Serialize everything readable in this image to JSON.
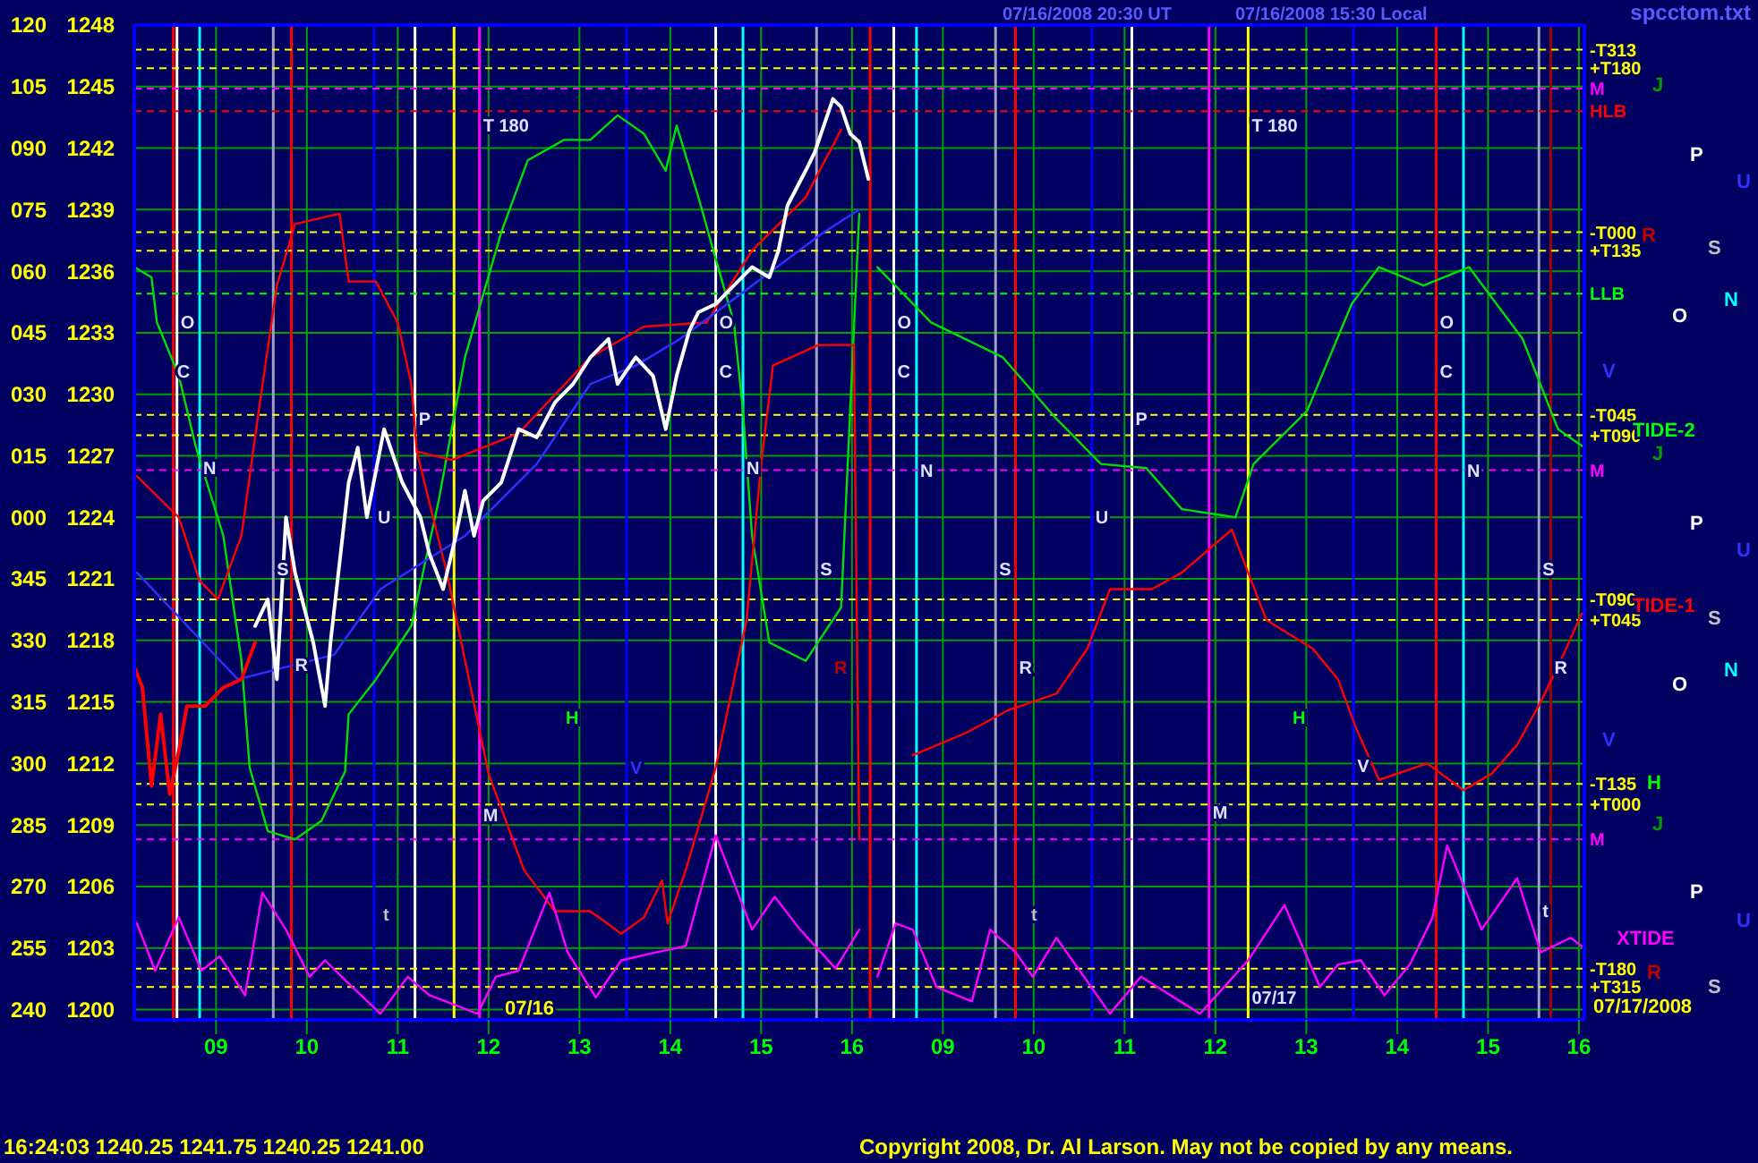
{
  "chart_data": [
    {
      "type": "line",
      "xlim": [
        8.1,
        16.25
      ],
      "ylim": [
        1199.5,
        1248
      ],
      "y2lim": [
        237.5,
        480
      ],
      "xticks": [
        {
          "value": 9,
          "label": "09"
        },
        10,
        11,
        12,
        13,
        14,
        15,
        16
      ],
      "yticks": [
        1200,
        1203,
        1206,
        1209,
        1212,
        1215,
        1218,
        1221,
        1224,
        1227,
        1230,
        1233,
        1236,
        1239,
        1242,
        1245,
        1248
      ],
      "y2ticks": [
        240,
        255,
        270,
        285,
        300,
        315,
        330,
        345
      ],
      "y3lim": [
        -122.5,
        120
      ],
      "y3ticks": [
        {
          "value": 0,
          "label": "000"
        },
        {
          "value": 15,
          "label": "015"
        },
        {
          "value": 30,
          "label": "030"
        },
        {
          "value": 45,
          "label": "045"
        },
        {
          "value": 60,
          "label": "060"
        },
        {
          "value": 75,
          "label": "075"
        },
        {
          "value": 90,
          "label": "090"
        },
        {
          "value": 105,
          "label": "105"
        },
        120
      ],
      "grid": true,
      "line_style": "solid",
      "marker": "none",
      "series": [
        {
          "color": "#00e000",
          "x": [
            8.1,
            8.29,
            8.35,
            8.59,
            8.78,
            9.08,
            9.28,
            9.37,
            9.57,
            9.87,
            10.16,
            10.42,
            10.46,
            10.76,
            11.15,
            11.45,
            11.74,
            12.14,
            12.43,
            12.83,
            13.12,
            13.42,
            13.71,
            13.95,
            14.07,
            14.31,
            14.5,
            14.7,
            14.8,
            14.9,
            15.09,
            15.49,
            15.88,
            16.08
          ],
          "values": [
            1236.2,
            1235.7,
            1233.5,
            1230.9,
            1227.4,
            1223.1,
            1217.0,
            1211.8,
            1208.7,
            1208.3,
            1209.2,
            1211.6,
            1214.4,
            1216.1,
            1218.7,
            1224.8,
            1231.8,
            1237.9,
            1241.4,
            1242.4,
            1242.4,
            1243.6,
            1242.7,
            1240.9,
            1243.1,
            1239.6,
            1236.6,
            1233.5,
            1229.2,
            1223.1,
            1217.9,
            1217.0,
            1219.6,
            1238.8
          ]
        },
        {
          "color": "#ff0000",
          "x": [
            8.13,
            8.59,
            8.82,
            9.02,
            9.28,
            9.47,
            9.67,
            9.87,
            10.36,
            10.46,
            10.76,
            11.0,
            11.15,
            11.21,
            11.6,
            12.33,
            13.12,
            13.71,
            14.4,
            14.9,
            15.49,
            15.88
          ],
          "values": [
            1226.0,
            1224.0,
            1220.9,
            1220.0,
            1223.1,
            1229.2,
            1235.3,
            1238.3,
            1238.8,
            1235.5,
            1235.5,
            1233.5,
            1230.5,
            1227.2,
            1226.8,
            1228.1,
            1231.8,
            1233.3,
            1233.5,
            1237.0,
            1239.6,
            1242.9
          ]
        },
        {
          "color": "#ff0000",
          "x": [
            11.21,
            11.54,
            12.0,
            12.39,
            12.73,
            13.12,
            13.46,
            13.71,
            13.91,
            13.97,
            14.17,
            14.5,
            14.84,
            15.0,
            15.13,
            15.63,
            16.02,
            16.08
          ],
          "values": [
            1227.2,
            1221.3,
            1211.5,
            1206.8,
            1204.8,
            1204.8,
            1203.7,
            1204.5,
            1206.3,
            1204.2,
            1206.8,
            1211.8,
            1219.0,
            1226.6,
            1231.4,
            1232.4,
            1232.4,
            1208.3
          ]
        },
        {
          "color": "#3030ff",
          "x": [
            8.13,
            9.24,
            10.3,
            10.81,
            11.74,
            12.53,
            13.12,
            13.62,
            14.11,
            14.9,
            15.69,
            16.08
          ],
          "values": [
            1221.3,
            1216.1,
            1217.3,
            1220.5,
            1223.1,
            1226.6,
            1230.5,
            1231.4,
            1232.7,
            1235.3,
            1237.9,
            1239.0
          ]
        },
        {
          "color": "#ff00ff",
          "x": [
            8.13,
            8.33,
            8.59,
            8.84,
            9.04,
            9.32,
            9.51,
            9.77,
            10.03,
            10.2,
            10.5,
            10.81,
            11.11,
            11.35,
            11.88,
            12.08,
            12.33,
            12.67,
            12.87,
            13.18,
            13.46,
            13.85,
            14.17,
            14.5,
            14.9,
            15.15,
            15.43,
            15.82,
            16.08
          ],
          "values": [
            1204.2,
            1201.9,
            1204.5,
            1201.9,
            1202.6,
            1200.7,
            1205.7,
            1203.9,
            1201.6,
            1202.4,
            1201.1,
            1199.8,
            1201.6,
            1200.7,
            1199.8,
            1201.6,
            1201.9,
            1205.7,
            1202.8,
            1200.6,
            1202.4,
            1202.8,
            1203.1,
            1208.5,
            1203.9,
            1205.5,
            1203.9,
            1202.0,
            1203.9
          ]
        },
        {
          "color": "#ff0000",
          "x": [
            8.11,
            8.19,
            8.29,
            8.39,
            8.49,
            8.59,
            8.68,
            8.88,
            9.08,
            9.28,
            9.43
          ],
          "values": [
            1216.6,
            1215.7,
            1210.9,
            1214.4,
            1210.5,
            1212.6,
            1214.8,
            1214.8,
            1215.7,
            1216.1,
            1217.9
          ]
        },
        {
          "color": "#ffffff",
          "x": [
            9.43,
            9.57,
            9.67,
            9.77,
            9.87,
            10.07,
            10.2,
            10.26,
            10.46,
            10.56,
            10.66,
            10.85,
            11.05,
            11.25,
            11.35,
            11.5,
            11.64,
            11.74,
            11.84,
            11.94,
            12.14,
            12.33,
            12.53,
            12.73,
            12.93,
            13.12,
            13.32,
            13.42,
            13.62,
            13.81,
            13.95,
            14.07,
            14.21,
            14.31,
            14.5,
            14.7,
            14.9,
            15.09,
            15.19,
            15.29,
            15.49,
            15.59,
            15.69,
            15.79,
            15.88,
            15.98,
            16.08,
            16.18
          ],
          "values": [
            1218.7,
            1220.0,
            1216.1,
            1224.0,
            1221.3,
            1217.9,
            1214.8,
            1217.9,
            1225.7,
            1227.4,
            1224.0,
            1228.3,
            1225.7,
            1224.0,
            1222.2,
            1220.5,
            1223.1,
            1225.3,
            1223.1,
            1224.8,
            1225.7,
            1228.3,
            1227.9,
            1229.6,
            1230.5,
            1231.8,
            1232.7,
            1230.5,
            1231.8,
            1230.9,
            1228.3,
            1230.9,
            1233.1,
            1234.0,
            1234.4,
            1235.3,
            1236.2,
            1235.7,
            1237.0,
            1239.2,
            1240.9,
            1241.8,
            1243.1,
            1244.4,
            1244.0,
            1242.7,
            1242.3,
            1240.5
          ]
        }
      ],
      "ref_lines": [
        {
          "axis": "x",
          "value": 8.53,
          "color": "#ff0000"
        },
        {
          "axis": "x",
          "value": 8.57,
          "color": "#ffffff"
        },
        {
          "axis": "x",
          "value": 8.82,
          "color": "#00ffff"
        },
        {
          "axis": "x",
          "value": 9.63,
          "color": "#a0a0c0"
        },
        {
          "axis": "x",
          "value": 9.83,
          "color": "#ff0000"
        },
        {
          "axis": "x",
          "value": 10.74,
          "color": "#0000ff"
        },
        {
          "axis": "x",
          "value": 11.19,
          "color": "#ffffff"
        },
        {
          "axis": "x",
          "value": 11.62,
          "color": "#ffff00"
        },
        {
          "axis": "x",
          "value": 11.9,
          "color": "#ff00ff"
        },
        {
          "axis": "x",
          "value": 13.52,
          "color": "#0000ff"
        },
        {
          "axis": "x",
          "value": 14.5,
          "color": "#ffffff"
        },
        {
          "axis": "x",
          "value": 14.8,
          "color": "#00ffff"
        },
        {
          "axis": "x",
          "value": 15.61,
          "color": "#a0a0c0"
        },
        {
          "axis": "x",
          "value": 16.2,
          "color": "#ff0000"
        },
        {
          "axis": "y",
          "value": 1246.8,
          "color": "#ffff00",
          "line_style": "dashed"
        },
        {
          "axis": "y",
          "value": 1245.9,
          "color": "#ffff00",
          "line_style": "dashed"
        },
        {
          "axis": "y",
          "value": 1244.9,
          "color": "#ff00ff",
          "line_style": "dashed"
        },
        {
          "axis": "y",
          "value": 1243.8,
          "color": "#ff0000",
          "line_style": "dashed"
        },
        {
          "axis": "y",
          "value": 1237.9,
          "color": "#ffff00",
          "line_style": "dashed"
        },
        {
          "axis": "y",
          "value": 1237.0,
          "color": "#ffff00",
          "line_style": "dashed"
        },
        {
          "axis": "y",
          "value": 1234.9,
          "color": "#00ff00",
          "line_style": "dashed"
        },
        {
          "axis": "y",
          "value": 1229.0,
          "color": "#ffff00",
          "line_style": "dashed"
        },
        {
          "axis": "y",
          "value": 1228.0,
          "color": "#ffff00",
          "line_style": "dashed"
        },
        {
          "axis": "y",
          "value": 1226.3,
          "color": "#ff00ff",
          "line_style": "dashed"
        },
        {
          "axis": "y",
          "value": 1220.0,
          "color": "#ffff00",
          "line_style": "dashed"
        },
        {
          "axis": "y",
          "value": 1219.0,
          "color": "#ffff00",
          "line_style": "dashed"
        },
        {
          "axis": "y",
          "value": 1211.0,
          "color": "#ffff00",
          "line_style": "dashed"
        },
        {
          "axis": "y",
          "value": 1210.0,
          "color": "#ffff00",
          "line_style": "dashed"
        },
        {
          "axis": "y",
          "value": 1208.3,
          "color": "#ff00ff",
          "line_style": "dashed"
        },
        {
          "axis": "y",
          "value": 1202.0,
          "color": "#ffff00",
          "line_style": "dashed"
        },
        {
          "axis": "y",
          "value": 1201.1,
          "color": "#ffff00",
          "line_style": "dashed"
        }
      ],
      "annotations": [
        "07/16/2008 20:30 UT",
        "07/16/2008 15:30 Local",
        "spcctom.txt",
        "16:24:03 1240.25 1241.75 1240.25 1241.00",
        "Copyright 2008, Dr. Al Larson. May not be copied by any means.",
        "07/16",
        "t",
        "H",
        "V",
        "R",
        {
          "text": "T 180",
          "x": 11.9,
          "y": 1243.1
        },
        {
          "text": "O",
          "x": 8.57,
          "y": 1233.5
        },
        {
          "text": "C",
          "x": 8.53,
          "y": 1231.1
        },
        {
          "text": "N",
          "x": 8.82,
          "y": 1226.4
        },
        {
          "text": "S",
          "x": 9.63,
          "y": 1221.5
        },
        {
          "text": "R",
          "x": 9.83,
          "y": 1216.8
        },
        {
          "text": "U",
          "x": 10.74,
          "y": 1224.0
        },
        {
          "text": "P",
          "x": 11.19,
          "y": 1228.8
        },
        {
          "text": "M",
          "x": 11.9,
          "y": 1209.5
        },
        {
          "text": "O",
          "x": 14.5,
          "y": 1233.5
        },
        {
          "text": "C",
          "x": 14.5,
          "y": 1231.1
        },
        {
          "text": "N",
          "x": 14.8,
          "y": 1226.4
        },
        {
          "text": "S",
          "x": 15.61,
          "y": 1221.5
        }
      ]
    },
    {
      "type": "line",
      "xlim": [
        8.25,
        16.06
      ],
      "ylim": [
        1199.5,
        1248
      ],
      "tick_labels": "x",
      "xticks": [
        {
          "value": 9,
          "label": "09"
        },
        10,
        11,
        12,
        13,
        14,
        15,
        16
      ],
      "yticks": [
        1200,
        1203,
        1206,
        1209,
        1212,
        1215,
        1218,
        1221,
        1224,
        1227,
        1230,
        1233,
        1236,
        1239,
        1242,
        1245,
        1248
      ],
      "grid": true,
      "line_style": "solid",
      "marker": "none",
      "series": [
        {
          "color": "#00e000",
          "x": [
            8.28,
            8.87,
            9.66,
            10.25,
            10.74,
            11.24,
            11.63,
            12.22,
            12.42,
            13.01,
            13.5,
            13.8,
            14.29,
            14.79,
            15.38,
            15.77,
            16.06
          ],
          "values": [
            1236.2,
            1233.5,
            1231.8,
            1228.8,
            1226.6,
            1226.4,
            1224.4,
            1224.0,
            1226.6,
            1229.2,
            1234.4,
            1236.2,
            1235.3,
            1236.2,
            1232.7,
            1228.3,
            1227.4
          ]
        },
        {
          "color": "#ff0000",
          "x": [
            8.67,
            9.26,
            9.72,
            10.25,
            10.59,
            10.84,
            11.3,
            11.63,
            12.18,
            12.36,
            12.56,
            13.07,
            13.35,
            13.54,
            13.8,
            14.33,
            14.73,
            15.04,
            15.32,
            15.58,
            15.83,
            16.03
          ],
          "values": [
            1212.4,
            1213.5,
            1214.6,
            1215.4,
            1217.6,
            1220.5,
            1220.5,
            1221.3,
            1223.4,
            1221.3,
            1219.0,
            1217.6,
            1216.1,
            1213.8,
            1211.2,
            1212.0,
            1210.7,
            1211.5,
            1212.9,
            1215.0,
            1217.3,
            1219.3
          ]
        },
        {
          "color": "#ff00ff",
          "x": [
            8.28,
            8.48,
            8.67,
            8.93,
            9.32,
            9.52,
            9.8,
            9.99,
            10.25,
            10.84,
            11.18,
            11.83,
            12.36,
            12.76,
            13.15,
            13.35,
            13.6,
            13.86,
            14.14,
            14.39,
            14.55,
            14.93,
            15.32,
            15.58,
            15.91,
            16.03
          ],
          "values": [
            1201.6,
            1204.2,
            1203.9,
            1201.1,
            1200.4,
            1203.9,
            1202.8,
            1201.6,
            1203.5,
            1199.8,
            1201.6,
            1199.8,
            1202.4,
            1205.1,
            1201.1,
            1202.2,
            1202.4,
            1200.7,
            1202.2,
            1204.5,
            1208.0,
            1203.9,
            1206.4,
            1202.8,
            1203.5,
            1203.1
          ]
        }
      ],
      "ref_lines": [
        {
          "axis": "x",
          "value": 8.46,
          "color": "#ffffff"
        },
        {
          "axis": "x",
          "value": 8.71,
          "color": "#00ffff"
        },
        {
          "axis": "x",
          "value": 9.58,
          "color": "#a0a0c0"
        },
        {
          "axis": "x",
          "value": 9.8,
          "color": "#ff0000"
        },
        {
          "axis": "x",
          "value": 10.64,
          "color": "#0000ff"
        },
        {
          "axis": "x",
          "value": 11.08,
          "color": "#ffffff"
        },
        {
          "axis": "x",
          "value": 11.93,
          "color": "#ff00ff"
        },
        {
          "axis": "x",
          "value": 12.36,
          "color": "#ffff00"
        },
        {
          "axis": "x",
          "value": 13.52,
          "color": "#0000ff"
        },
        {
          "axis": "x",
          "value": 14.43,
          "color": "#ff0000"
        },
        {
          "axis": "x",
          "value": 14.73,
          "color": "#00ffff"
        },
        {
          "axis": "x",
          "value": 15.56,
          "color": "#a0a0c0"
        },
        {
          "axis": "x",
          "value": 15.69,
          "color": "#a00000"
        },
        {
          "axis": "y",
          "value": 1246.8,
          "label": "-T313",
          "color": "#ffff00",
          "line_style": "dashed"
        },
        {
          "axis": "y",
          "value": 1245.9,
          "label": "+T180",
          "color": "#ffff00",
          "line_style": "dashed"
        },
        {
          "axis": "y",
          "value": 1244.9,
          "label": "M",
          "color": "#ff00ff",
          "line_style": "dashed"
        },
        {
          "axis": "y",
          "value": 1243.8,
          "label": "HLB",
          "color": "#ff0000",
          "line_style": "dashed"
        },
        {
          "axis": "y",
          "value": 1237.9,
          "label": "-T000",
          "color": "#ffff00",
          "line_style": "dashed"
        },
        {
          "axis": "y",
          "value": 1237.0,
          "label": "+T135",
          "color": "#ffff00",
          "line_style": "dashed"
        },
        {
          "axis": "y",
          "value": 1234.9,
          "label": "LLB",
          "color": "#00ff00",
          "line_style": "dashed"
        },
        {
          "axis": "y",
          "value": 1229.0,
          "label": "-T045",
          "color": "#ffff00",
          "line_style": "dashed"
        },
        {
          "axis": "y",
          "value": 1228.0,
          "label": "+T090",
          "color": "#ffff00",
          "line_style": "dashed"
        },
        {
          "axis": "y",
          "value": 1226.3,
          "label": "M",
          "color": "#ff00ff",
          "line_style": "dashed"
        },
        {
          "axis": "y",
          "value": 1220.0,
          "label": "-T090",
          "color": "#ffff00",
          "line_style": "dashed"
        },
        {
          "axis": "y",
          "value": 1219.0,
          "label": "+T045",
          "color": "#ffff00",
          "line_style": "dashed"
        },
        {
          "axis": "y",
          "value": 1211.0,
          "label": "-T135",
          "color": "#ffff00",
          "line_style": "dashed"
        },
        {
          "axis": "y",
          "value": 1210.0,
          "label": "+T000",
          "color": "#ffff00",
          "line_style": "dashed"
        },
        {
          "axis": "y",
          "value": 1208.3,
          "label": "M",
          "color": "#ff00ff",
          "line_style": "dashed"
        },
        {
          "axis": "y",
          "value": 1202.0,
          "label": "-T180",
          "color": "#ffff00",
          "line_style": "dashed"
        },
        {
          "axis": "y",
          "value": 1201.1,
          "label": "+T315",
          "color": "#ffff00",
          "line_style": "dashed"
        }
      ],
      "annotations": [
        "t",
        "H",
        "J",
        "P",
        "U",
        "R",
        "S",
        "N",
        "O",
        "V",
        "TIDE-2",
        "J",
        "P",
        "U",
        "TIDE-1",
        "S",
        "N",
        "O",
        "V",
        "H",
        "J",
        "P",
        "U",
        "XTIDE",
        "R",
        "S",
        "07/17/2008",
        {
          "text": "T 180",
          "x": 12.36,
          "y": 1243.1
        },
        {
          "text": "07/17",
          "x": 12.36,
          "y": 1200.6
        },
        {
          "text": "O",
          "x": 8.46,
          "y": 1233.5
        },
        {
          "text": "C",
          "x": 8.46,
          "y": 1231.1
        },
        {
          "text": "N",
          "x": 8.71,
          "y": 1226.3
        },
        {
          "text": "S",
          "x": 9.58,
          "y": 1221.5
        },
        {
          "text": "R",
          "x": 9.8,
          "y": 1216.7
        },
        {
          "text": "U",
          "x": 10.64,
          "y": 1224.0
        },
        {
          "text": "P",
          "x": 11.08,
          "y": 1228.8
        },
        {
          "text": "M",
          "x": 11.93,
          "y": 1209.6
        },
        {
          "text": "V",
          "x": 13.52,
          "y": 1211.9
        },
        {
          "text": "O",
          "x": 14.43,
          "y": 1233.5
        },
        {
          "text": "C",
          "x": 14.43,
          "y": 1231.1
        },
        {
          "text": "N",
          "x": 14.73,
          "y": 1226.3
        },
        {
          "text": "S",
          "x": 15.56,
          "y": 1221.5
        },
        {
          "text": "R",
          "x": 15.69,
          "y": 1216.7
        },
        {
          "text": "t",
          "x": 15.56,
          "y": 1204.8
        }
      ]
    }
  ]
}
